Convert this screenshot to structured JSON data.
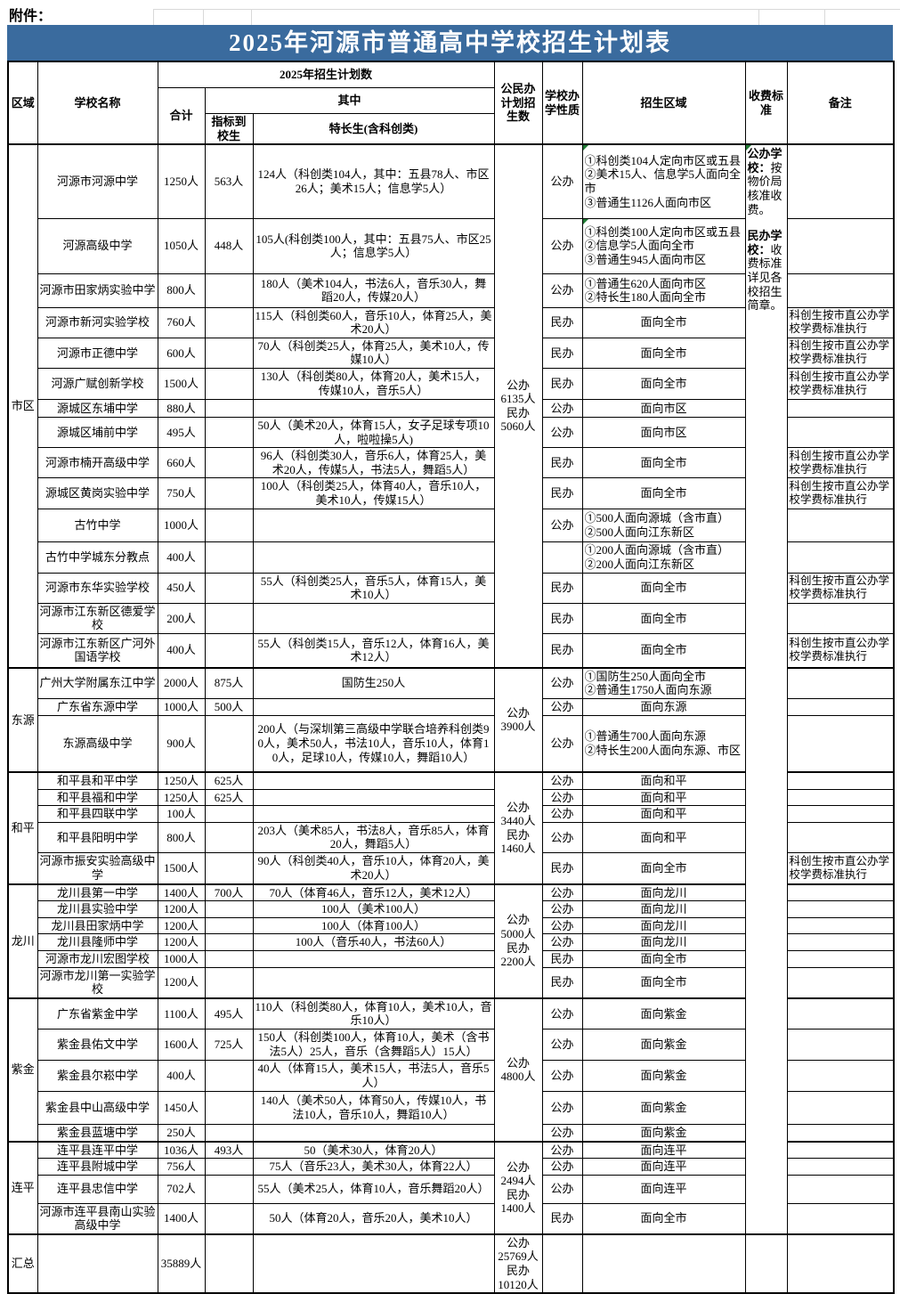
{
  "attachment_label": "附件：",
  "title": "2025年河源市普通高中学校招生计划表",
  "header": {
    "region": "区域",
    "school_name": "学校名称",
    "plan_group": "2025年招生计划数",
    "total": "合计",
    "among": "其中",
    "quota": "指标到校生",
    "special": "特长生(含科创类)",
    "public_private_plan": "公民办计划招生数",
    "school_type": "学校办学性质",
    "enroll_area": "招生区域",
    "fee_standard": "收费标准",
    "remark": "备注"
  },
  "fee_note": {
    "public_label": "公办学校：",
    "public_text": "按物价局核准收费。",
    "private_label": "民办学校：",
    "private_text": "收费标准详见各校招生简章。"
  },
  "regions": [
    {
      "name": "市区",
      "public_private": "公办\n6135人\n民办\n5060人",
      "schools": [
        {
          "name": "河源市河源中学",
          "total": "1250人",
          "quota": "563人",
          "special": "124人（科创类104人，其中：五县78人、市区26人；美术15人；信息学5人）",
          "type": "公办",
          "area": "①科创类104人定向市区或五县\n②美术15人、信息学5人面向全市\n③普通生1126人面向市区",
          "note": "",
          "area_flag": true
        },
        {
          "name": "河源高级中学",
          "total": "1050人",
          "quota": "448人",
          "special": "105人(科创类100人，其中：五县75人、市区25人；信息学5人）",
          "type": "公办",
          "area": "①科创类100人定向市区或五县\n②信息学5人面向全市\n③普通生945人面向市区",
          "note": "",
          "area_flag": true
        },
        {
          "name": "河源市田家炳实验中学",
          "total": "800人",
          "quota": "",
          "special": "180人（美术104人，书法6人，音乐30人，舞蹈20人，传媒20人）",
          "type": "公办",
          "area": "①普通生620人面向市区\n②特长生180人面向全市",
          "note": ""
        },
        {
          "name": "河源市新河实验学校",
          "total": "760人",
          "quota": "",
          "special": "115人（科创类60人，音乐10人，体育25人，美术20人）",
          "type": "民办",
          "area": "面向全市",
          "note": "科创生按市直公办学校学费标准执行"
        },
        {
          "name": "河源市正德中学",
          "total": "600人",
          "quota": "",
          "special": "70人（科创类25人，体育25人，美术10人，传媒10人）",
          "type": "民办",
          "area": "面向全市",
          "note": "科创生按市直公办学校学费标准执行"
        },
        {
          "name": "河源广赋创新学校",
          "total": "1500人",
          "quota": "",
          "special": "130人（科创类80人，体育20人，美术15人，传媒10人，音乐5人）",
          "type": "民办",
          "area": "面向全市",
          "note": "科创生按市直公办学校学费标准执行"
        },
        {
          "name": "源城区东埔中学",
          "total": "880人",
          "quota": "",
          "special": "",
          "type": "公办",
          "area": "面向市区",
          "note": ""
        },
        {
          "name": "源城区埔前中学",
          "total": "495人",
          "quota": "",
          "special": "50人（美术20人，体育15人，女子足球专项10人，啦啦操5人)",
          "type": "公办",
          "area": "面向市区",
          "note": ""
        },
        {
          "name": "河源市楠开高级中学",
          "total": "660人",
          "quota": "",
          "special": "96人（科创类30人，音乐6人，体育25人，美术20人，传媒5人，书法5人，舞蹈5人）",
          "type": "民办",
          "area": "面向全市",
          "note": "科创生按市直公办学校学费标准执行"
        },
        {
          "name": "源城区黄岗实验中学",
          "total": "750人",
          "quota": "",
          "special": "100人（科创类25人，体育40人，音乐10人，美术10人，传媒15人）",
          "type": "民办",
          "area": "面向全市",
          "note": "科创生按市直公办学校学费标准执行"
        },
        {
          "name": "古竹中学",
          "total": "1000人",
          "quota": "",
          "special": "",
          "type": "公办",
          "area": "①500人面向源城（含市直）\n②500人面向江东新区",
          "note": ""
        },
        {
          "name": "古竹中学城东分教点",
          "total": "400人",
          "quota": "",
          "special": "",
          "type": "",
          "area": "①200人面向源城（含市直）\n②200人面向江东新区",
          "note": ""
        },
        {
          "name": "河源市东华实验学校",
          "total": "450人",
          "quota": "",
          "special": "55人（科创类25人，音乐5人，体育15人，美术10人）",
          "type": "民办",
          "area": "面向全市",
          "note": "科创生按市直公办学校学费标准执行"
        },
        {
          "name": "河源市江东新区德爱学校",
          "total": "200人",
          "quota": "",
          "special": "",
          "type": "民办",
          "area": "面向全市",
          "note": ""
        },
        {
          "name": "河源市江东新区广河外国语学校",
          "total": "400人",
          "quota": "",
          "special": "55人（科创类15人，音乐12人，体育16人，美术12人）",
          "type": "民办",
          "area": "面向全市",
          "note": "科创生按市直公办学校学费标准执行"
        }
      ]
    },
    {
      "name": "东源",
      "public_private": "公办\n3900人",
      "schools": [
        {
          "name": "广州大学附属东江中学",
          "total": "2000人",
          "quota": "875人",
          "special": "国防生250人",
          "type": "公办",
          "area": "①国防生250人面向全市\n②普通生1750人面向东源",
          "note": ""
        },
        {
          "name": "广东省东源中学",
          "total": "1000人",
          "quota": "500人",
          "special": "",
          "type": "公办",
          "area": "面向东源",
          "note": ""
        },
        {
          "name": "东源高级中学",
          "total": "900人",
          "quota": "",
          "special": "200人（与深圳第三高级中学联合培养科创类90人，美术50人，书法10人，音乐10人，体育10人，足球10人，传媒10人，舞蹈10人）",
          "type": "公办",
          "area": "①普通生700人面向东源\n②特长生200人面向东源、市区",
          "note": ""
        }
      ]
    },
    {
      "name": "和平",
      "public_private": "公办\n3440人\n民办\n1460人",
      "schools": [
        {
          "name": "和平县和平中学",
          "total": "1250人",
          "quota": "625人",
          "special": "",
          "type": "公办",
          "area": "面向和平",
          "note": ""
        },
        {
          "name": "和平县福和中学",
          "total": "1250人",
          "quota": "625人",
          "special": "",
          "type": "公办",
          "area": "面向和平",
          "note": ""
        },
        {
          "name": "和平县四联中学",
          "total": "100人",
          "quota": "",
          "special": "",
          "type": "公办",
          "area": "面向和平",
          "note": ""
        },
        {
          "name": "和平县阳明中学",
          "total": "800人",
          "quota": "",
          "special": "203人（美术85人，书法8人，音乐85人，体育20人，舞蹈5人）",
          "type": "公办",
          "area": "面向和平",
          "note": ""
        },
        {
          "name": "河源市振安实验高级中学",
          "total": "1500人",
          "quota": "",
          "special": "90人（科创类40人，音乐10人，体育20人，美术20人）",
          "type": "民办",
          "area": "面向全市",
          "note": "科创生按市直公办学校学费标准执行"
        }
      ]
    },
    {
      "name": "龙川",
      "public_private": "公办\n5000人\n民办\n2200人",
      "schools": [
        {
          "name": "龙川县第一中学",
          "total": "1400人",
          "quota": "700人",
          "special": "70人（体育46人，音乐12人，美术12人）",
          "type": "公办",
          "area": "面向龙川",
          "note": ""
        },
        {
          "name": "龙川县实验中学",
          "total": "1200人",
          "quota": "",
          "special": "100人（美术100人）",
          "type": "公办",
          "area": "面向龙川",
          "note": ""
        },
        {
          "name": "龙川县田家炳中学",
          "total": "1200人",
          "quota": "",
          "special": "100人（体育100人）",
          "type": "公办",
          "area": "面向龙川",
          "note": ""
        },
        {
          "name": "龙川县隆师中学",
          "total": "1200人",
          "quota": "",
          "special": "100人（音乐40人，书法60人）",
          "type": "公办",
          "area": "面向龙川",
          "note": ""
        },
        {
          "name": "河源市龙川宏图学校",
          "total": "1000人",
          "quota": "",
          "special": "",
          "type": "民办",
          "area": "面向全市",
          "note": ""
        },
        {
          "name": "河源市龙川第一实验学校",
          "total": "1200人",
          "quota": "",
          "special": "",
          "type": "民办",
          "area": "面向全市",
          "note": ""
        }
      ]
    },
    {
      "name": "紫金",
      "public_private": "公办\n4800人",
      "schools": [
        {
          "name": "广东省紫金中学",
          "total": "1100人",
          "quota": "495人",
          "special": "110人（科创类80人，体育10人，美术10人，音乐10人）",
          "type": "公办",
          "area": "面向紫金",
          "note": ""
        },
        {
          "name": "紫金县佑文中学",
          "total": "1600人",
          "quota": "725人",
          "special": "150人（科创类100人，体育10人，美术（含书法5人）25人，音乐（含舞蹈5人）15人）",
          "type": "公办",
          "area": "面向紫金",
          "note": ""
        },
        {
          "name": "紫金县尔崧中学",
          "total": "400人",
          "quota": "",
          "special": "40人（体育15人，美术15人，书法5人，音乐5人）",
          "type": "公办",
          "area": "面向紫金",
          "note": ""
        },
        {
          "name": "紫金县中山高级中学",
          "total": "1450人",
          "quota": "",
          "special": "140人（美术50人，体育50人，传媒10人，书法10人，音乐10人，舞蹈10人）",
          "type": "公办",
          "area": "面向紫金",
          "note": ""
        },
        {
          "name": "紫金县蓝塘中学",
          "total": "250人",
          "quota": "",
          "special": "",
          "type": "公办",
          "area": "面向紫金",
          "note": ""
        }
      ]
    },
    {
      "name": "连平",
      "public_private": "公办\n2494人\n民办\n1400人",
      "schools": [
        {
          "name": "连平县连平中学",
          "total": "1036人",
          "quota": "493人",
          "special": "50（美术30人，体育20人）",
          "type": "公办",
          "area": "面向连平",
          "note": ""
        },
        {
          "name": "连平县附城中学",
          "total": "756人",
          "quota": "",
          "special": "75人（音乐23人，美术30人，体育22人）",
          "type": "公办",
          "area": "面向连平",
          "note": ""
        },
        {
          "name": "连平县忠信中学",
          "total": "702人",
          "quota": "",
          "special": "55人（美术25人，体育10人，音乐舞蹈20人）",
          "type": "公办",
          "area": "面向连平",
          "note": ""
        },
        {
          "name": "河源市连平县南山实验高级中学",
          "total": "1400人",
          "quota": "",
          "special": "50人（体育20人，音乐20人，美术10人）",
          "type": "民办",
          "area": "面向全市",
          "note": ""
        }
      ]
    }
  ],
  "summary_row": {
    "region": "汇总",
    "total": "35889人",
    "public_private": "公办\n25769人\n民办\n10120人"
  }
}
